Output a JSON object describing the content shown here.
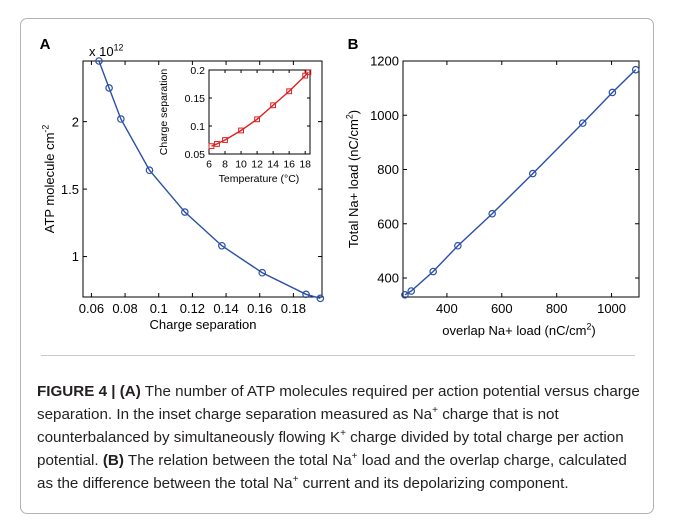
{
  "chart_data": [
    {
      "type": "line",
      "panel_label": "A",
      "xlabel": "Charge separation",
      "ylabel": "ATP molecule cm^-2",
      "y_multiplier": "x 10^12",
      "xlim": [
        0.055,
        0.197
      ],
      "ylim": [
        0.7,
        2.45
      ],
      "xticks": [
        0.06,
        0.08,
        0.1,
        0.12,
        0.14,
        0.16,
        0.18
      ],
      "xtick_labels": [
        "0.06",
        "0.08",
        "0.1",
        "0.12",
        "0.14",
        "0.16",
        "0.18"
      ],
      "yticks": [
        1,
        1.5,
        2
      ],
      "ytick_labels": [
        "1",
        "1.5",
        "2"
      ],
      "grid": false,
      "series": [
        {
          "color": "#2a4fa8",
          "marker": "circle",
          "x": [
            0.0645,
            0.0705,
            0.0775,
            0.0945,
            0.1155,
            0.1375,
            0.1615,
            0.1875,
            0.196
          ],
          "y": [
            2.45,
            2.25,
            2.02,
            1.64,
            1.33,
            1.08,
            0.88,
            0.72,
            0.69
          ]
        }
      ]
    },
    {
      "type": "line",
      "inset": true,
      "xlabel": "Temperature (°C)",
      "ylabel": "Charge separation",
      "xlim": [
        6,
        18.6
      ],
      "ylim": [
        0.05,
        0.2
      ],
      "xticks": [
        6,
        8,
        10,
        12,
        14,
        16,
        18
      ],
      "xtick_labels": [
        "6",
        "8",
        "10",
        "12",
        "14",
        "16",
        "18"
      ],
      "yticks": [
        0.05,
        0.1,
        0.15,
        0.2
      ],
      "ytick_labels": [
        "0.05",
        "0.1",
        "0.15",
        "0.2"
      ],
      "grid": false,
      "series": [
        {
          "color": "#e02020",
          "marker": "square",
          "x": [
            6.3,
            7,
            8,
            10,
            12,
            14,
            16,
            18,
            18.4
          ],
          "y": [
            0.064,
            0.068,
            0.075,
            0.092,
            0.112,
            0.137,
            0.162,
            0.19,
            0.196
          ]
        }
      ]
    },
    {
      "type": "line",
      "panel_label": "B",
      "xlabel": "overlap Na+ load (nC/cm²)",
      "ylabel": "Total Na+ load (nC/cm²)",
      "xlim": [
        240,
        1100
      ],
      "ylim": [
        330,
        1200
      ],
      "xticks": [
        400,
        600,
        800,
        1000
      ],
      "xtick_labels": [
        "400",
        "600",
        "800",
        "1000"
      ],
      "yticks": [
        400,
        600,
        800,
        1000,
        1200
      ],
      "ytick_labels": [
        "400",
        "600",
        "800",
        "1000",
        "1200"
      ],
      "grid": false,
      "series": [
        {
          "color": "#2a4fa8",
          "marker": "circle",
          "x": [
            247,
            270,
            350,
            440,
            565,
            713,
            895,
            1003,
            1088
          ],
          "y": [
            338,
            352,
            424,
            519,
            637,
            785,
            971,
            1084,
            1168
          ]
        }
      ]
    }
  ],
  "caption": {
    "label": "FIGURE 4 | ",
    "a_label": "(A)",
    "a_text_1": " The number of ATP molecules required per action potential versus charge separation. In the inset charge separation measured as Na",
    "sup_plus": "+",
    "a_text_2": " charge that is not counterbalanced by simultaneously flowing K",
    "a_text_3": " charge divided by total charge per action potential. ",
    "b_label": "(B)",
    "b_text_1": " The relation between the total Na",
    "b_text_2": " load and the overlap charge, calculated as the difference between the total Na",
    "b_text_3": " current and its depolarizing component."
  }
}
